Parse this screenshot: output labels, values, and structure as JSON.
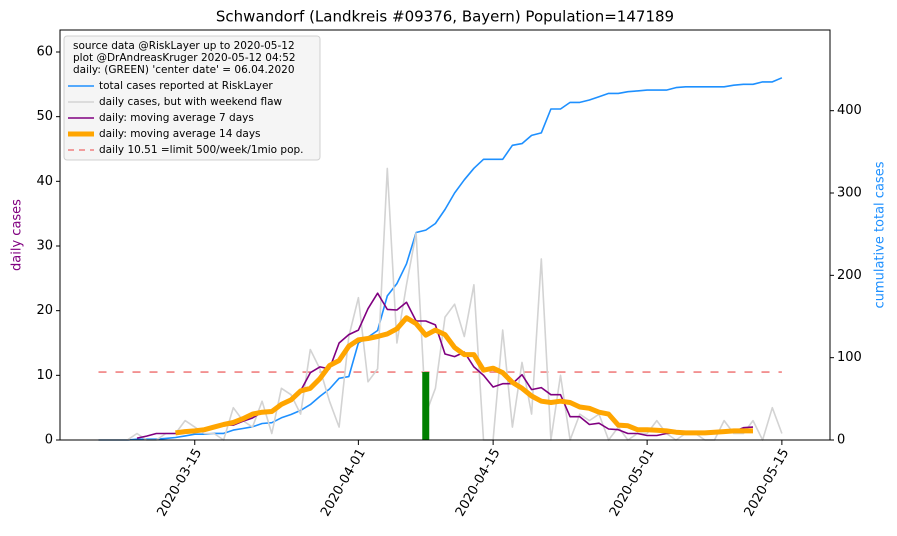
{
  "chart_data": {
    "type": "line",
    "title": "Schwandorf (Landkreis #09376, Bayern) Population=147189",
    "ylabel": "daily cases",
    "ylabel_color": "#800080",
    "y2label": "cumulative total cases",
    "y2label_color": "#1e90ff",
    "xlim": [
      "2020-03-01",
      "2020-05-20"
    ],
    "xticks": [
      "2020-03-15",
      "2020-04-01",
      "2020-04-15",
      "2020-05-01",
      "2020-05-15"
    ],
    "ylim": [
      0,
      63.4
    ],
    "yticks": [
      0,
      10,
      20,
      30,
      40,
      50,
      60
    ],
    "y2lim": [
      0,
      498
    ],
    "y2ticks": [
      0,
      100,
      200,
      300,
      400
    ],
    "legend": "upper left",
    "legend_header": [
      "source data @RiskLayer up to 2020-05-12",
      "plot @DrAndreasKruger 2020-05-12 04:52",
      "daily: (GREEN) 'center date' = 06.04.2020"
    ],
    "x": [
      "2020-03-05",
      "2020-03-06",
      "2020-03-07",
      "2020-03-08",
      "2020-03-09",
      "2020-03-10",
      "2020-03-11",
      "2020-03-12",
      "2020-03-13",
      "2020-03-14",
      "2020-03-15",
      "2020-03-16",
      "2020-03-17",
      "2020-03-18",
      "2020-03-19",
      "2020-03-20",
      "2020-03-21",
      "2020-03-22",
      "2020-03-23",
      "2020-03-24",
      "2020-03-25",
      "2020-03-26",
      "2020-03-27",
      "2020-03-28",
      "2020-03-29",
      "2020-03-30",
      "2020-03-31",
      "2020-04-01",
      "2020-04-02",
      "2020-04-03",
      "2020-04-04",
      "2020-04-05",
      "2020-04-06",
      "2020-04-07",
      "2020-04-08",
      "2020-04-09",
      "2020-04-10",
      "2020-04-11",
      "2020-04-12",
      "2020-04-13",
      "2020-04-14",
      "2020-04-15",
      "2020-04-16",
      "2020-04-17",
      "2020-04-18",
      "2020-04-19",
      "2020-04-20",
      "2020-04-21",
      "2020-04-22",
      "2020-04-23",
      "2020-04-24",
      "2020-04-25",
      "2020-04-26",
      "2020-04-27",
      "2020-04-28",
      "2020-04-29",
      "2020-04-30",
      "2020-05-01",
      "2020-05-02",
      "2020-05-03",
      "2020-05-04",
      "2020-05-05",
      "2020-05-06",
      "2020-05-07",
      "2020-05-08",
      "2020-05-09",
      "2020-05-10",
      "2020-05-11",
      "2020-05-12",
      "2020-05-13",
      "2020-05-14",
      "2020-05-15"
    ],
    "series": [
      {
        "name": "total cases reported at RiskLayer",
        "color": "#1e90ff",
        "width": 1.6,
        "axis": "y2",
        "values": [
          0,
          0,
          0,
          0,
          1,
          1,
          1,
          2,
          3,
          5,
          7,
          7,
          8,
          8,
          12,
          14,
          16,
          20,
          21,
          27,
          31,
          36,
          43,
          53,
          62,
          75,
          77,
          118,
          125,
          133,
          175,
          190,
          214,
          252,
          255,
          263,
          280,
          300,
          316,
          330,
          341,
          341,
          341,
          358,
          360,
          370,
          373,
          402,
          402,
          410,
          410,
          413,
          417,
          421,
          421,
          423,
          424,
          425,
          425,
          425,
          428,
          429,
          429,
          429,
          429,
          429,
          431,
          432,
          432,
          435,
          435,
          440
        ]
      },
      {
        "name": "daily cases, but with weekend flaw",
        "color": "#d3d3d3",
        "width": 1.6,
        "values": [
          0,
          0,
          0,
          0,
          1,
          0,
          0,
          1,
          1,
          3,
          2,
          1,
          1,
          0,
          5,
          3,
          2,
          6,
          1,
          8,
          7,
          4,
          14,
          11,
          6,
          2,
          16,
          22,
          9,
          11,
          42,
          15,
          24,
          32,
          4,
          8,
          19,
          21,
          16,
          24,
          0,
          0,
          17,
          2,
          12,
          4,
          28,
          0,
          10,
          0,
          4,
          3,
          4,
          0,
          2,
          0,
          1,
          1,
          3,
          1,
          0,
          1,
          1,
          0,
          0,
          3,
          1,
          1,
          3,
          0,
          5,
          1
        ]
      },
      {
        "name": "daily: moving average 7 days",
        "color": "#800080",
        "width": 1.6,
        "values": [
          null,
          null,
          null,
          null,
          0.3,
          0.6,
          1,
          1,
          1,
          1.3,
          1.3,
          1.4,
          2,
          2.3,
          2.3,
          2.9,
          3.4,
          4.3,
          4.6,
          5.4,
          6.4,
          7.6,
          10.4,
          11.3,
          11,
          15,
          16.3,
          17,
          20.3,
          22.7,
          20.2,
          20.1,
          21.3,
          18.4,
          18.4,
          17.8,
          13.3,
          12.9,
          13.6,
          11.3,
          10,
          8.2,
          8.7,
          8.7,
          10.1,
          7.8,
          8.1,
          7,
          7,
          3.6,
          3.6,
          2.4,
          2.6,
          1.7,
          1.6,
          1,
          1,
          0.7,
          0.7,
          1,
          1.1,
          1.1,
          1.1,
          1.2,
          1.3,
          1.2,
          1.3,
          1.9,
          2,
          null,
          null,
          null
        ]
      },
      {
        "name": "daily: moving average 14 days",
        "color": "#ffa500",
        "width": 5,
        "values": [
          null,
          null,
          null,
          null,
          null,
          null,
          null,
          null,
          1.1,
          1.3,
          1.4,
          1.6,
          2,
          2.4,
          2.7,
          3.3,
          4,
          4.3,
          4.4,
          5.5,
          6.2,
          7.6,
          8,
          9.5,
          11.5,
          12.3,
          14.5,
          15.5,
          15.7,
          16,
          16.4,
          17.2,
          18.9,
          18,
          16.2,
          17,
          16.3,
          14.3,
          13.2,
          13.2,
          10.8,
          11.1,
          10.4,
          8.9,
          8,
          6.8,
          6,
          5.8,
          6,
          5.8,
          5.1,
          4.9,
          4.3,
          4,
          2.3,
          2.2,
          1.6,
          1.6,
          1.5,
          1.4,
          1.2,
          1.1,
          1.1,
          1.1,
          1.2,
          1.3,
          1.4,
          1.4,
          1.4,
          null,
          null,
          null
        ]
      }
    ],
    "threshold": {
      "label": "daily 10.51 =limit 500/week/1mio pop.",
      "value": 10.51,
      "color": "#f08080"
    },
    "highlight": {
      "x": "2020-04-08",
      "value": 10.51,
      "color": "#008000"
    }
  }
}
